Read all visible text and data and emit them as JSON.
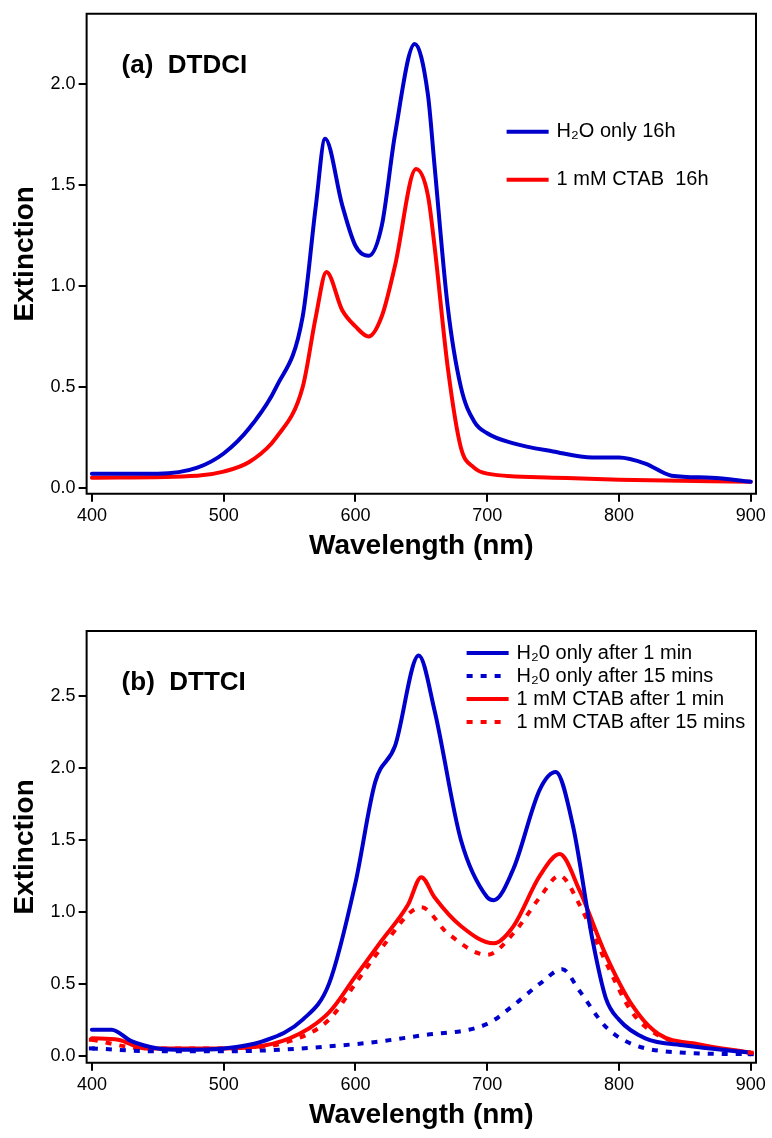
{
  "chart_data": [
    {
      "type": "line",
      "xlabel": "Wavelength (nm)",
      "ylabel": "Extinction",
      "annotations": [
        "(a)  DTDCI"
      ],
      "xlim": [
        396,
        904
      ],
      "ylim": [
        -0.03,
        2.35
      ],
      "xticks": [
        400,
        500,
        600,
        700,
        800,
        900
      ],
      "yticks": [
        {
          "value": 0,
          "label": "0.0"
        },
        {
          "value": 0.5,
          "label": "0.5"
        },
        {
          "value": 1,
          "label": "1.0"
        },
        {
          "value": 1.5,
          "label": "1.5"
        },
        {
          "value": 2,
          "label": "2.0"
        }
      ],
      "grid": false,
      "legend": "top right",
      "marker": "none",
      "series": [
        {
          "name": "H₂O only 16h",
          "color": "#0000cc",
          "line_style": "solid",
          "x": [
            400,
            450,
            480,
            500,
            520,
            540,
            560,
            570,
            577,
            590,
            600,
            610,
            620,
            630,
            645,
            655,
            660,
            670,
            680,
            690,
            700,
            720,
            750,
            780,
            800,
            820,
            840,
            870,
            900
          ],
          "values": [
            0.07,
            0.07,
            0.1,
            0.17,
            0.3,
            0.5,
            0.85,
            1.4,
            1.73,
            1.4,
            1.2,
            1.15,
            1.3,
            1.75,
            2.2,
            1.95,
            1.6,
            0.9,
            0.5,
            0.33,
            0.27,
            0.22,
            0.18,
            0.15,
            0.15,
            0.12,
            0.06,
            0.05,
            0.03
          ]
        },
        {
          "name": "1 mM CTAB  16h",
          "color": "#ff0000",
          "line_style": "solid",
          "x": [
            400,
            480,
            500,
            520,
            540,
            560,
            570,
            578,
            590,
            600,
            610,
            620,
            630,
            646,
            655,
            660,
            670,
            680,
            690,
            700,
            750,
            800,
            900
          ],
          "values": [
            0.05,
            0.06,
            0.08,
            0.13,
            0.25,
            0.5,
            0.85,
            1.07,
            0.88,
            0.8,
            0.75,
            0.85,
            1.1,
            1.58,
            1.45,
            1.2,
            0.6,
            0.2,
            0.1,
            0.07,
            0.05,
            0.04,
            0.03
          ]
        }
      ]
    },
    {
      "type": "line",
      "xlabel": "Wavelength (nm)",
      "ylabel": "Extinction",
      "annotations": [
        "(b)  DTTCI"
      ],
      "xlim": [
        396,
        904
      ],
      "ylim": [
        -0.05,
        2.95
      ],
      "xticks": [
        400,
        500,
        600,
        700,
        800,
        900
      ],
      "yticks": [
        {
          "value": 0,
          "label": "0.0"
        },
        {
          "value": 0.5,
          "label": "0.5"
        },
        {
          "value": 1,
          "label": "1.0"
        },
        {
          "value": 1.5,
          "label": "1.5"
        },
        {
          "value": 2,
          "label": "2.0"
        },
        {
          "value": 2.5,
          "label": "2.5"
        }
      ],
      "grid": false,
      "legend": "top right",
      "marker": "none",
      "series": [
        {
          "name": "H₂0 only after 1 min",
          "color": "#0000cc",
          "line_style": "solid",
          "x": [
            400,
            415,
            430,
            450,
            470,
            500,
            530,
            560,
            580,
            600,
            615,
            630,
            648,
            660,
            680,
            700,
            705,
            720,
            740,
            752,
            765,
            780,
            790,
            800,
            820,
            850,
            900
          ],
          "values": [
            0.18,
            0.18,
            0.1,
            0.05,
            0.04,
            0.05,
            0.1,
            0.25,
            0.5,
            1.2,
            1.9,
            2.15,
            2.78,
            2.4,
            1.5,
            1.1,
            1.08,
            1.3,
            1.85,
            1.97,
            1.6,
            0.8,
            0.4,
            0.25,
            0.12,
            0.07,
            0.02
          ]
        },
        {
          "name": "H₂0 only after 15 mins",
          "color": "#0000cc",
          "line_style": "dotted",
          "x": [
            400,
            450,
            500,
            600,
            650,
            700,
            720,
            740,
            757,
            770,
            790,
            810,
            850,
            900
          ],
          "values": [
            0.05,
            0.03,
            0.03,
            0.08,
            0.14,
            0.22,
            0.35,
            0.5,
            0.6,
            0.45,
            0.2,
            0.08,
            0.02,
            0.01
          ]
        },
        {
          "name": "1 mM CTAB after 1 min",
          "color": "#ff0000",
          "line_style": "solid",
          "x": [
            400,
            420,
            440,
            500,
            550,
            580,
            600,
            620,
            640,
            650,
            660,
            680,
            705,
            720,
            740,
            755,
            770,
            790,
            810,
            830,
            860,
            900
          ],
          "values": [
            0.12,
            0.11,
            0.05,
            0.05,
            0.12,
            0.3,
            0.55,
            0.8,
            1.05,
            1.24,
            1.1,
            0.9,
            0.78,
            0.9,
            1.25,
            1.4,
            1.15,
            0.7,
            0.35,
            0.15,
            0.08,
            0.02
          ]
        },
        {
          "name": "1 mM CTAB after 15 mins",
          "color": "#ff0000",
          "line_style": "dotted",
          "x": [
            400,
            440,
            500,
            550,
            580,
            600,
            620,
            650,
            670,
            700,
            720,
            740,
            755,
            770,
            790,
            810,
            830,
            860,
            900
          ],
          "values": [
            0.11,
            0.05,
            0.05,
            0.1,
            0.25,
            0.5,
            0.75,
            1.03,
            0.85,
            0.7,
            0.85,
            1.1,
            1.25,
            1.05,
            0.65,
            0.3,
            0.14,
            0.07,
            0.02
          ]
        }
      ]
    }
  ]
}
